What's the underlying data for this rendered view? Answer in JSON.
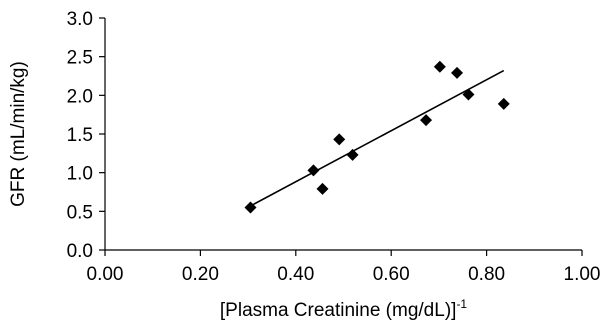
{
  "chart_data": {
    "type": "scatter",
    "title": "",
    "xlabel": "[Plasma Creatinine (mg/dL)]",
    "xlabel_superscript": "-1",
    "ylabel": "GFR (mL/min/kg)",
    "xlim": [
      0,
      1
    ],
    "ylim": [
      0,
      3
    ],
    "x_ticks": [
      0,
      0.2,
      0.4,
      0.6,
      0.8,
      1.0
    ],
    "x_tick_labels": [
      "0.00",
      "0.20",
      "0.40",
      "0.60",
      "0.80",
      "1.00"
    ],
    "y_ticks": [
      0,
      0.5,
      1.0,
      1.5,
      2.0,
      2.5,
      3.0
    ],
    "y_tick_labels": [
      "0.0",
      "0.5",
      "1.0",
      "1.5",
      "2.0",
      "2.5",
      "3.0"
    ],
    "grid": false,
    "legend": "none",
    "marker": "diamond",
    "marker_color": "#000000",
    "series": [
      {
        "points": [
          {
            "x": 0.305,
            "y": 0.55
          },
          {
            "x": 0.437,
            "y": 1.03
          },
          {
            "x": 0.456,
            "y": 0.79
          },
          {
            "x": 0.491,
            "y": 1.43
          },
          {
            "x": 0.519,
            "y": 1.23
          },
          {
            "x": 0.673,
            "y": 1.68
          },
          {
            "x": 0.702,
            "y": 2.37
          },
          {
            "x": 0.738,
            "y": 2.29
          },
          {
            "x": 0.762,
            "y": 2.01
          },
          {
            "x": 0.836,
            "y": 1.89
          }
        ]
      }
    ],
    "trendline": {
      "type": "linear",
      "x_range": [
        0.305,
        0.836
      ],
      "y_range": [
        0.57,
        2.32
      ],
      "color": "#000000"
    }
  }
}
